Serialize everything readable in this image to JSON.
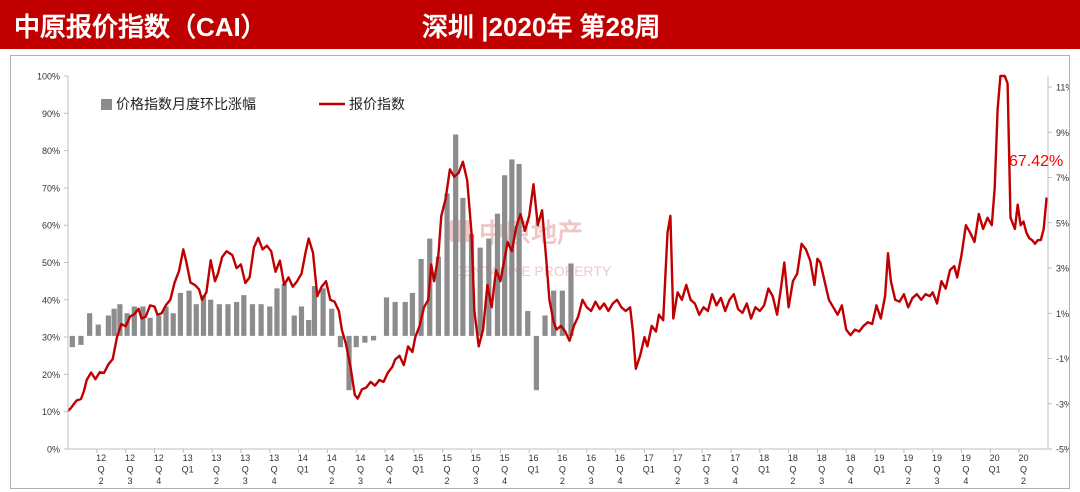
{
  "header": {
    "title": "中原报价指数（CAI）",
    "subtitle": "深圳 |2020年 第28周"
  },
  "colors": {
    "header_bg": "#c00000",
    "line": "#c00000",
    "bar": "#8c8c8c",
    "callout": "#ff0000"
  },
  "watermark": {
    "cn": "中原地产",
    "en": "CENTALINE PROPERTY"
  },
  "chart_data": {
    "type": "bar+line",
    "legend": {
      "bar": "价格指数月度环比涨幅",
      "line": "报价指数",
      "position": "top-left"
    },
    "callout": "67.42%",
    "y_left": {
      "min": 0,
      "max": 100,
      "step": 10,
      "labels": [
        "0%",
        "10%",
        "20%",
        "30%",
        "40%",
        "50%",
        "60%",
        "70%",
        "80%",
        "90%",
        "100%"
      ]
    },
    "y_right": {
      "min": -5,
      "max": 12,
      "labels": [
        "11%",
        "9%",
        "7%",
        "5%",
        "3%",
        "1%",
        "-1%",
        "-3%",
        "-5%"
      ],
      "values": [
        11,
        9,
        7,
        5,
        3,
        1,
        -1,
        -3,
        -5
      ]
    },
    "x_ticks": [
      {
        "i": 2,
        "label": [
          "12",
          "Q",
          "2"
        ]
      },
      {
        "i": 3,
        "label": [
          "12",
          "Q",
          "3"
        ]
      },
      {
        "i": 4,
        "label": [
          "12",
          "Q",
          "4"
        ]
      },
      {
        "i": 5,
        "label": [
          "13",
          "Q1"
        ]
      },
      {
        "i": 6,
        "label": [
          "13",
          "Q",
          "2"
        ]
      },
      {
        "i": 7,
        "label": [
          "13",
          "Q",
          "3"
        ]
      },
      {
        "i": 8,
        "label": [
          "13",
          "Q",
          "4"
        ]
      },
      {
        "i": 9,
        "label": [
          "14",
          "Q1"
        ]
      },
      {
        "i": 10,
        "label": [
          "14",
          "Q",
          "2"
        ]
      },
      {
        "i": 11,
        "label": [
          "14",
          "Q",
          "3"
        ]
      },
      {
        "i": 12,
        "label": [
          "14",
          "Q",
          "4"
        ]
      },
      {
        "i": 13,
        "label": [
          "15",
          "Q1"
        ]
      },
      {
        "i": 14,
        "label": [
          "15",
          "Q",
          "2"
        ]
      },
      {
        "i": 15,
        "label": [
          "15",
          "Q",
          "3"
        ]
      },
      {
        "i": 16,
        "label": [
          "15",
          "Q",
          "4"
        ]
      },
      {
        "i": 17,
        "label": [
          "16",
          "Q1"
        ]
      },
      {
        "i": 18,
        "label": [
          "16",
          "Q",
          "2"
        ]
      },
      {
        "i": 19,
        "label": [
          "16",
          "Q",
          "3"
        ]
      },
      {
        "i": 20,
        "label": [
          "16",
          "Q",
          "4"
        ]
      },
      {
        "i": 21,
        "label": [
          "17",
          "Q1"
        ]
      },
      {
        "i": 22,
        "label": [
          "17",
          "Q",
          "2"
        ]
      },
      {
        "i": 23,
        "label": [
          "17",
          "Q",
          "3"
        ]
      },
      {
        "i": 24,
        "label": [
          "17",
          "Q",
          "4"
        ]
      },
      {
        "i": 25,
        "label": [
          "18",
          "Q1"
        ]
      },
      {
        "i": 26,
        "label": [
          "18",
          "Q",
          "2"
        ]
      },
      {
        "i": 27,
        "label": [
          "18",
          "Q",
          "3"
        ]
      },
      {
        "i": 28,
        "label": [
          "18",
          "Q",
          "4"
        ]
      },
      {
        "i": 29,
        "label": [
          "19",
          "Q1"
        ]
      },
      {
        "i": 30,
        "label": [
          "19",
          "Q",
          "2"
        ]
      },
      {
        "i": 31,
        "label": [
          "19",
          "Q",
          "3"
        ]
      },
      {
        "i": 32,
        "label": [
          "19",
          "Q",
          "4"
        ]
      },
      {
        "i": 33,
        "label": [
          "20",
          "Q1"
        ]
      },
      {
        "i": 34,
        "label": [
          "20",
          "Q",
          "2"
        ]
      }
    ],
    "bars": [
      {
        "x": 1.15,
        "v": -0.5
      },
      {
        "x": 1.45,
        "v": -0.4
      },
      {
        "x": 1.75,
        "v": 1.0
      },
      {
        "x": 2.05,
        "v": 0.5
      },
      {
        "x": 2.4,
        "v": 0.9
      },
      {
        "x": 2.6,
        "v": 1.2
      },
      {
        "x": 2.8,
        "v": 1.4
      },
      {
        "x": 3.05,
        "v": 1.0
      },
      {
        "x": 3.3,
        "v": 1.3
      },
      {
        "x": 3.6,
        "v": 1.3
      },
      {
        "x": 3.85,
        "v": 0.8
      },
      {
        "x": 4.15,
        "v": 0.9
      },
      {
        "x": 4.4,
        "v": 1.3
      },
      {
        "x": 4.65,
        "v": 1.0
      },
      {
        "x": 4.9,
        "v": 1.9
      },
      {
        "x": 5.2,
        "v": 2.0
      },
      {
        "x": 5.45,
        "v": 1.4
      },
      {
        "x": 5.7,
        "v": 1.8
      },
      {
        "x": 5.95,
        "v": 1.6
      },
      {
        "x": 6.25,
        "v": 1.4
      },
      {
        "x": 6.55,
        "v": 1.4
      },
      {
        "x": 6.85,
        "v": 1.5
      },
      {
        "x": 7.1,
        "v": 1.8
      },
      {
        "x": 7.4,
        "v": 1.4
      },
      {
        "x": 7.7,
        "v": 1.4
      },
      {
        "x": 8.0,
        "v": 1.3
      },
      {
        "x": 8.25,
        "v": 2.1
      },
      {
        "x": 8.5,
        "v": 2.3
      },
      {
        "x": 8.85,
        "v": 0.9
      },
      {
        "x": 9.1,
        "v": 1.3
      },
      {
        "x": 9.35,
        "v": 0.7
      },
      {
        "x": 9.55,
        "v": 2.2
      },
      {
        "x": 9.85,
        "v": 2.1
      },
      {
        "x": 10.15,
        "v": 1.2
      },
      {
        "x": 10.45,
        "v": -0.5
      },
      {
        "x": 10.75,
        "v": -2.4
      },
      {
        "x": 11.0,
        "v": -0.5
      },
      {
        "x": 11.3,
        "v": -0.3
      },
      {
        "x": 11.6,
        "v": -0.2
      },
      {
        "x": 12.05,
        "v": 1.7
      },
      {
        "x": 12.35,
        "v": 1.5
      },
      {
        "x": 12.7,
        "v": 1.5
      },
      {
        "x": 12.95,
        "v": 1.9
      },
      {
        "x": 13.25,
        "v": 3.4
      },
      {
        "x": 13.55,
        "v": 4.3
      },
      {
        "x": 13.85,
        "v": 3.5
      },
      {
        "x": 14.15,
        "v": 6.3
      },
      {
        "x": 14.45,
        "v": 8.9
      },
      {
        "x": 14.7,
        "v": 6.1
      },
      {
        "x": 15.0,
        "v": 4.5
      },
      {
        "x": 15.3,
        "v": 3.9
      },
      {
        "x": 15.6,
        "v": 4.3
      },
      {
        "x": 15.9,
        "v": 5.4
      },
      {
        "x": 16.15,
        "v": 7.1
      },
      {
        "x": 16.4,
        "v": 7.8
      },
      {
        "x": 16.65,
        "v": 7.6
      },
      {
        "x": 16.95,
        "v": 1.1
      },
      {
        "x": 17.25,
        "v": -2.4
      },
      {
        "x": 17.55,
        "v": 0.9
      },
      {
        "x": 17.85,
        "v": 2.0
      },
      {
        "x": 18.15,
        "v": 2.0
      },
      {
        "x": 18.45,
        "v": 3.2
      }
    ],
    "line": [
      [
        1.0,
        10.2
      ],
      [
        1.1,
        11.0
      ],
      [
        1.3,
        13.0
      ],
      [
        1.45,
        13.4
      ],
      [
        1.55,
        15.5
      ],
      [
        1.65,
        18.5
      ],
      [
        1.8,
        20.5
      ],
      [
        1.95,
        18.7
      ],
      [
        2.1,
        20.6
      ],
      [
        2.25,
        20.4
      ],
      [
        2.4,
        22.7
      ],
      [
        2.55,
        24.1
      ],
      [
        2.7,
        30.0
      ],
      [
        2.85,
        33.5
      ],
      [
        3.0,
        32.9
      ],
      [
        3.15,
        35.5
      ],
      [
        3.3,
        36.1
      ],
      [
        3.45,
        37.6
      ],
      [
        3.55,
        35.0
      ],
      [
        3.7,
        35.5
      ],
      [
        3.85,
        38.5
      ],
      [
        4.0,
        38.2
      ],
      [
        4.1,
        36.0
      ],
      [
        4.25,
        36.4
      ],
      [
        4.4,
        38.6
      ],
      [
        4.55,
        40.0
      ],
      [
        4.7,
        44.6
      ],
      [
        4.85,
        47.7
      ],
      [
        5.0,
        53.5
      ],
      [
        5.1,
        50.3
      ],
      [
        5.25,
        44.6
      ],
      [
        5.4,
        44.0
      ],
      [
        5.55,
        42.8
      ],
      [
        5.65,
        40.0
      ],
      [
        5.8,
        42.0
      ],
      [
        5.95,
        50.6
      ],
      [
        6.1,
        45.0
      ],
      [
        6.2,
        47.0
      ],
      [
        6.35,
        51.5
      ],
      [
        6.5,
        53.0
      ],
      [
        6.7,
        52.0
      ],
      [
        6.85,
        48.5
      ],
      [
        7.0,
        49.5
      ],
      [
        7.15,
        44.5
      ],
      [
        7.3,
        46.0
      ],
      [
        7.45,
        54.0
      ],
      [
        7.6,
        56.6
      ],
      [
        7.75,
        53.5
      ],
      [
        7.9,
        54.5
      ],
      [
        8.05,
        53.0
      ],
      [
        8.2,
        47.5
      ],
      [
        8.35,
        50.5
      ],
      [
        8.5,
        44.0
      ],
      [
        8.65,
        46.0
      ],
      [
        8.8,
        43.5
      ],
      [
        8.95,
        45.0
      ],
      [
        9.1,
        47.0
      ],
      [
        9.25,
        53.0
      ],
      [
        9.35,
        56.4
      ],
      [
        9.5,
        52.6
      ],
      [
        9.65,
        41.0
      ],
      [
        9.8,
        43.5
      ],
      [
        9.95,
        45.0
      ],
      [
        10.1,
        40.0
      ],
      [
        10.25,
        39.5
      ],
      [
        10.4,
        37.0
      ],
      [
        10.5,
        32.0
      ],
      [
        10.65,
        28.0
      ],
      [
        10.8,
        22.0
      ],
      [
        10.95,
        14.5
      ],
      [
        11.05,
        13.5
      ],
      [
        11.2,
        16.0
      ],
      [
        11.35,
        16.5
      ],
      [
        11.5,
        18.0
      ],
      [
        11.65,
        17.0
      ],
      [
        11.8,
        18.5
      ],
      [
        11.95,
        18.0
      ],
      [
        12.1,
        20.5
      ],
      [
        12.25,
        22.0
      ],
      [
        12.35,
        24.0
      ],
      [
        12.5,
        25.0
      ],
      [
        12.65,
        22.5
      ],
      [
        12.8,
        27.5
      ],
      [
        12.95,
        26.0
      ],
      [
        13.05,
        30.0
      ],
      [
        13.2,
        33.0
      ],
      [
        13.35,
        38.0
      ],
      [
        13.5,
        40.0
      ],
      [
        13.6,
        49.5
      ],
      [
        13.7,
        45.0
      ],
      [
        13.85,
        52.0
      ],
      [
        13.95,
        62.5
      ],
      [
        14.1,
        67.0
      ],
      [
        14.25,
        75.0
      ],
      [
        14.4,
        73.0
      ],
      [
        14.55,
        74.0
      ],
      [
        14.7,
        77.0
      ],
      [
        14.85,
        72.0
      ],
      [
        15.0,
        58.0
      ],
      [
        15.1,
        37.0
      ],
      [
        15.25,
        27.5
      ],
      [
        15.4,
        32.0
      ],
      [
        15.55,
        44.0
      ],
      [
        15.7,
        38.0
      ],
      [
        15.85,
        48.0
      ],
      [
        16.0,
        45.0
      ],
      [
        16.1,
        49.0
      ],
      [
        16.25,
        55.5
      ],
      [
        16.4,
        53.0
      ],
      [
        16.55,
        59.5
      ],
      [
        16.7,
        63.0
      ],
      [
        16.85,
        58.5
      ],
      [
        17.0,
        62.5
      ],
      [
        17.15,
        71.0
      ],
      [
        17.3,
        60.0
      ],
      [
        17.45,
        64.0
      ],
      [
        17.6,
        50.0
      ],
      [
        17.7,
        40.0
      ],
      [
        17.85,
        34.0
      ],
      [
        17.95,
        32.0
      ],
      [
        18.1,
        33.0
      ],
      [
        18.25,
        31.5
      ],
      [
        18.4,
        29.0
      ],
      [
        18.55,
        33.0
      ],
      [
        18.7,
        35.5
      ],
      [
        18.85,
        40.0
      ],
      [
        19.0,
        38.0
      ],
      [
        19.15,
        37.0
      ],
      [
        19.3,
        39.5
      ],
      [
        19.45,
        37.5
      ],
      [
        19.6,
        39.0
      ],
      [
        19.75,
        37.0
      ],
      [
        19.9,
        39.0
      ],
      [
        20.05,
        40.0
      ],
      [
        20.2,
        38.0
      ],
      [
        20.35,
        37.0
      ],
      [
        20.5,
        38.0
      ],
      [
        20.6,
        31.5
      ],
      [
        20.7,
        21.5
      ],
      [
        20.85,
        25.0
      ],
      [
        21.0,
        30.0
      ],
      [
        21.1,
        27.5
      ],
      [
        21.25,
        33.0
      ],
      [
        21.4,
        31.5
      ],
      [
        21.5,
        36.0
      ],
      [
        21.65,
        34.5
      ],
      [
        21.8,
        58.0
      ],
      [
        21.9,
        62.5
      ],
      [
        22.0,
        35.0
      ],
      [
        22.15,
        42.0
      ],
      [
        22.3,
        40.0
      ],
      [
        22.45,
        44.0
      ],
      [
        22.6,
        40.0
      ],
      [
        22.75,
        39.0
      ],
      [
        22.9,
        36.0
      ],
      [
        23.05,
        38.0
      ],
      [
        23.2,
        37.0
      ],
      [
        23.35,
        41.5
      ],
      [
        23.5,
        38.5
      ],
      [
        23.65,
        40.5
      ],
      [
        23.8,
        37.0
      ],
      [
        23.95,
        40.0
      ],
      [
        24.1,
        41.5
      ],
      [
        24.25,
        37.5
      ],
      [
        24.4,
        36.5
      ],
      [
        24.55,
        39.0
      ],
      [
        24.7,
        35.0
      ],
      [
        24.85,
        38.0
      ],
      [
        25.0,
        37.0
      ],
      [
        25.15,
        38.5
      ],
      [
        25.3,
        43.0
      ],
      [
        25.45,
        41.0
      ],
      [
        25.6,
        36.0
      ],
      [
        25.75,
        44.0
      ],
      [
        25.85,
        50.0
      ],
      [
        26.0,
        38.0
      ],
      [
        26.15,
        45.0
      ],
      [
        26.3,
        47.0
      ],
      [
        26.45,
        55.0
      ],
      [
        26.6,
        53.5
      ],
      [
        26.75,
        50.5
      ],
      [
        26.9,
        44.0
      ],
      [
        27.0,
        51.0
      ],
      [
        27.1,
        50.0
      ],
      [
        27.25,
        45.0
      ],
      [
        27.4,
        40.0
      ],
      [
        27.55,
        38.0
      ],
      [
        27.7,
        36.0
      ],
      [
        27.85,
        38.5
      ],
      [
        28.0,
        32.0
      ],
      [
        28.15,
        30.5
      ],
      [
        28.3,
        32.0
      ],
      [
        28.45,
        31.5
      ],
      [
        28.6,
        33.0
      ],
      [
        28.75,
        34.0
      ],
      [
        28.9,
        33.5
      ],
      [
        29.05,
        38.5
      ],
      [
        29.2,
        35.0
      ],
      [
        29.35,
        41.0
      ],
      [
        29.45,
        52.5
      ],
      [
        29.55,
        45.0
      ],
      [
        29.7,
        40.0
      ],
      [
        29.85,
        39.5
      ],
      [
        30.0,
        41.5
      ],
      [
        30.15,
        38.0
      ],
      [
        30.3,
        40.5
      ],
      [
        30.45,
        41.5
      ],
      [
        30.6,
        40.0
      ],
      [
        30.75,
        41.5
      ],
      [
        30.9,
        41.0
      ],
      [
        31.0,
        42.0
      ],
      [
        31.15,
        39.0
      ],
      [
        31.3,
        45.0
      ],
      [
        31.45,
        43.0
      ],
      [
        31.6,
        48.0
      ],
      [
        31.75,
        49.0
      ],
      [
        31.85,
        46.0
      ],
      [
        32.0,
        52.0
      ],
      [
        32.15,
        60.0
      ],
      [
        32.3,
        58.0
      ],
      [
        32.45,
        55.5
      ],
      [
        32.6,
        63.0
      ],
      [
        32.75,
        59.0
      ],
      [
        32.9,
        62.0
      ],
      [
        33.05,
        60.0
      ],
      [
        33.15,
        70.0
      ],
      [
        33.25,
        91.0
      ],
      [
        33.35,
        100.0
      ],
      [
        33.5,
        100.0
      ],
      [
        33.6,
        98.0
      ],
      [
        33.7,
        62.0
      ],
      [
        33.85,
        59.0
      ],
      [
        33.95,
        65.5
      ],
      [
        34.05,
        60.0
      ],
      [
        34.15,
        61.0
      ],
      [
        34.25,
        58.0
      ],
      [
        34.35,
        56.5
      ],
      [
        34.45,
        56.0
      ],
      [
        34.55,
        55.0
      ],
      [
        34.65,
        56.0
      ],
      [
        34.75,
        56.0
      ],
      [
        34.85,
        59.0
      ],
      [
        34.95,
        67.42
      ]
    ]
  }
}
